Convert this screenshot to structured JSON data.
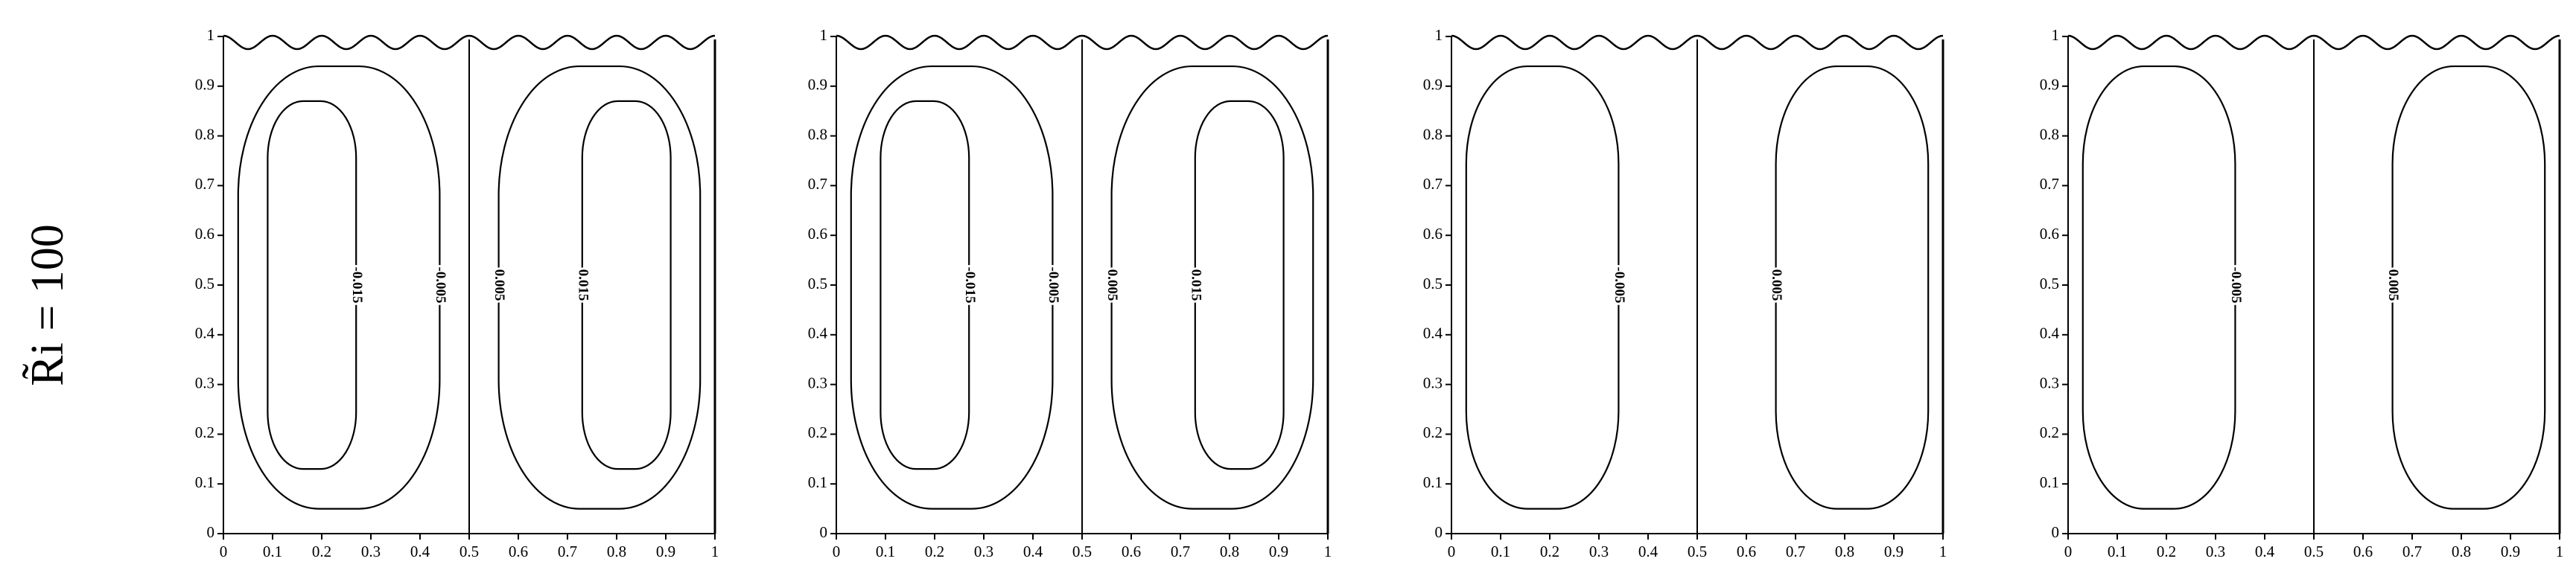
{
  "row_label": "R̃i = 100",
  "chart_data": [
    {
      "type": "contour",
      "xlim": [
        0,
        1
      ],
      "ylim": [
        0,
        1
      ],
      "xticks": [
        0,
        0.1,
        0.2,
        0.3,
        0.4,
        0.5,
        0.6,
        0.7,
        0.8,
        0.9,
        1
      ],
      "yticks": [
        0,
        0.1,
        0.2,
        0.3,
        0.4,
        0.5,
        0.6,
        0.7,
        0.8,
        0.9,
        1
      ],
      "levels": [
        -0.015,
        -0.005,
        0.005,
        0.015
      ]
    },
    {
      "type": "contour",
      "xlim": [
        0,
        1
      ],
      "ylim": [
        0,
        1
      ],
      "xticks": [
        0,
        0.1,
        0.2,
        0.3,
        0.4,
        0.5,
        0.6,
        0.7,
        0.8,
        0.9,
        1
      ],
      "yticks": [
        0,
        0.1,
        0.2,
        0.3,
        0.4,
        0.5,
        0.6,
        0.7,
        0.8,
        0.9,
        1
      ],
      "levels": [
        -0.015,
        -0.005,
        0.005,
        0.015
      ]
    },
    {
      "type": "contour",
      "xlim": [
        0,
        1
      ],
      "ylim": [
        0,
        1
      ],
      "xticks": [
        0,
        0.1,
        0.2,
        0.3,
        0.4,
        0.5,
        0.6,
        0.7,
        0.8,
        0.9,
        1
      ],
      "yticks": [
        0,
        0.1,
        0.2,
        0.3,
        0.4,
        0.5,
        0.6,
        0.7,
        0.8,
        0.9,
        1
      ],
      "levels": [
        -0.005,
        0.005
      ]
    },
    {
      "type": "contour",
      "xlim": [
        0,
        1
      ],
      "ylim": [
        0,
        1
      ],
      "xticks": [
        0,
        0.1,
        0.2,
        0.3,
        0.4,
        0.5,
        0.6,
        0.7,
        0.8,
        0.9,
        1
      ],
      "yticks": [
        0,
        0.1,
        0.2,
        0.3,
        0.4,
        0.5,
        0.6,
        0.7,
        0.8,
        0.9,
        1
      ],
      "levels": [
        -0.005,
        0.005
      ]
    }
  ]
}
